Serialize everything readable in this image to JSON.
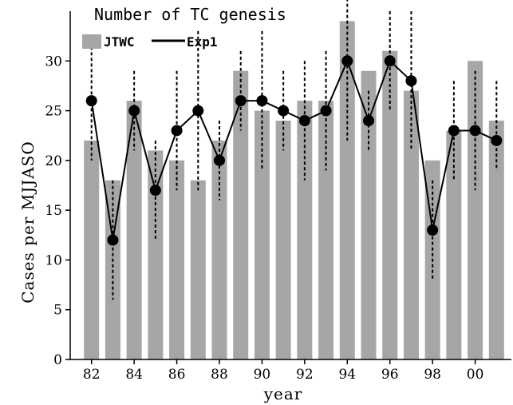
{
  "chart_data": {
    "type": "bar",
    "title": "Number of TC genesis",
    "xlabel": "year",
    "ylabel": "Cases per MJJASO",
    "ylim": [
      0,
      35
    ],
    "yticks": [
      0,
      5,
      10,
      15,
      20,
      25,
      30
    ],
    "xtick_labels": [
      "82",
      "84",
      "86",
      "88",
      "90",
      "92",
      "94",
      "96",
      "98",
      "00"
    ],
    "xtick_years": [
      1982,
      1984,
      1986,
      1988,
      1990,
      1992,
      1994,
      1996,
      1998,
      2000
    ],
    "grid": false,
    "legend_position": "top-left",
    "x": [
      1982,
      1983,
      1984,
      1985,
      1986,
      1987,
      1988,
      1989,
      1990,
      1991,
      1992,
      1993,
      1994,
      1995,
      1996,
      1997,
      1998,
      1999,
      2000,
      2001
    ],
    "series": [
      {
        "name": "JTWC",
        "kind": "bar",
        "color": "#a6a6a6",
        "values": [
          22,
          18,
          26,
          21,
          20,
          18,
          22,
          29,
          25,
          24,
          26,
          26,
          34,
          29,
          31,
          27,
          20,
          23,
          30,
          24
        ]
      },
      {
        "name": "Exp1",
        "kind": "line-marker",
        "color": "#000000",
        "values": [
          26,
          12,
          25,
          17,
          23,
          25,
          20,
          26,
          26,
          25,
          24,
          25,
          30,
          24,
          30,
          28,
          13,
          23,
          23,
          22
        ],
        "error_low": [
          20,
          6,
          21,
          12,
          17,
          17,
          16,
          23,
          19,
          21,
          18,
          19,
          22,
          21,
          25,
          21,
          8,
          18,
          17,
          19
        ],
        "error_high": [
          32,
          18,
          29,
          22,
          29,
          33,
          24,
          31,
          33,
          29,
          30,
          31,
          38,
          27,
          35,
          35,
          18,
          28,
          29,
          28
        ]
      }
    ]
  }
}
